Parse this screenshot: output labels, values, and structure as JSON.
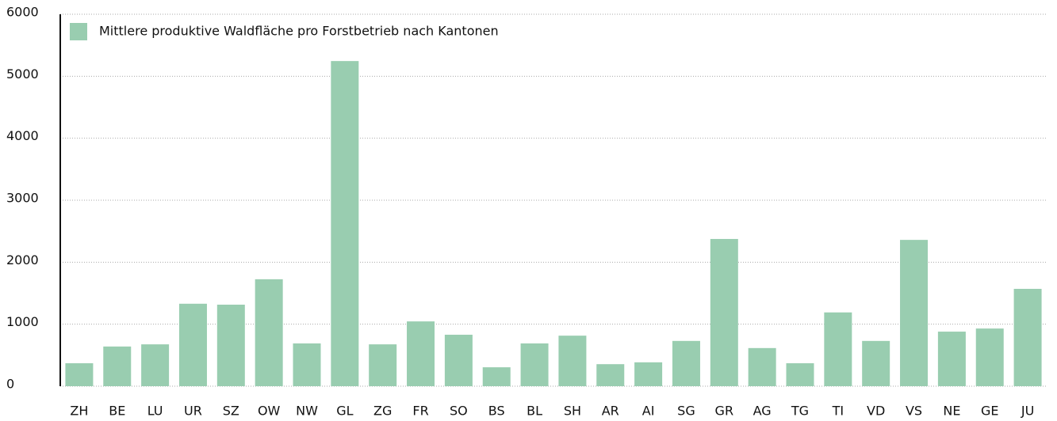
{
  "chart_data": {
    "type": "bar",
    "categories": [
      "ZH",
      "BE",
      "LU",
      "UR",
      "SZ",
      "OW",
      "NW",
      "GL",
      "ZG",
      "FR",
      "SO",
      "BS",
      "BL",
      "SH",
      "AR",
      "AI",
      "SG",
      "GR",
      "AG",
      "TG",
      "TI",
      "VD",
      "VS",
      "NE",
      "GE",
      "JU"
    ],
    "series": [
      {
        "name": "Mittlere produktive Waldfläche pro Forstbetrieb nach Kantonen",
        "color": "#99cdb0",
        "values": [
          370,
          640,
          675,
          1330,
          1315,
          1725,
          690,
          5245,
          675,
          1045,
          830,
          305,
          690,
          815,
          355,
          385,
          730,
          2375,
          615,
          370,
          1190,
          730,
          2360,
          880,
          930,
          1570
        ]
      }
    ],
    "ylim": [
      0,
      6000
    ],
    "yticks": [
      0,
      1000,
      2000,
      3000,
      4000,
      5000,
      6000
    ],
    "grid": true,
    "legend": "top-left"
  }
}
